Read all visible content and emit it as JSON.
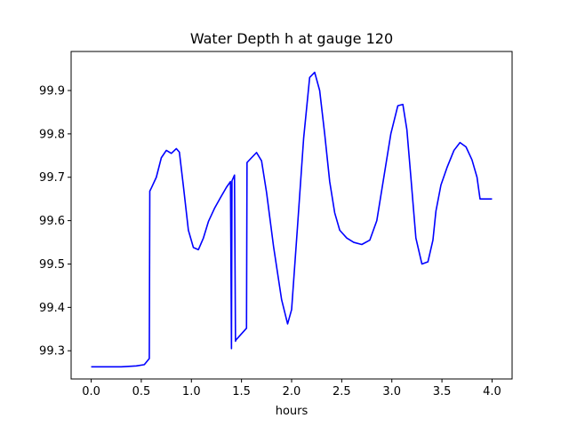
{
  "chart_data": {
    "type": "line",
    "title": "Water Depth h at gauge 120",
    "xlabel": "hours",
    "ylabel": "",
    "xlim": [
      -0.2,
      4.2
    ],
    "ylim": [
      99.235,
      99.99
    ],
    "xticks": [
      0.0,
      0.5,
      1.0,
      1.5,
      2.0,
      2.5,
      3.0,
      3.5,
      4.0
    ],
    "xtick_labels": [
      "0.0",
      "0.5",
      "1.0",
      "1.5",
      "2.0",
      "2.5",
      "3.0",
      "3.5",
      "4.0"
    ],
    "yticks": [
      99.3,
      99.4,
      99.5,
      99.6,
      99.7,
      99.8,
      99.9
    ],
    "ytick_labels": [
      "99.3",
      "99.4",
      "99.5",
      "99.6",
      "99.7",
      "99.8",
      "99.9"
    ],
    "grid": false,
    "series": [
      {
        "name": "h",
        "color": "#0000ff",
        "x": [
          0.0,
          0.3,
          0.45,
          0.53,
          0.58,
          0.585,
          0.6,
          0.65,
          0.7,
          0.75,
          0.8,
          0.85,
          0.88,
          0.92,
          0.97,
          1.02,
          1.07,
          1.12,
          1.17,
          1.23,
          1.29,
          1.35,
          1.39,
          1.4,
          1.405,
          1.43,
          1.44,
          1.445,
          1.55,
          1.555,
          1.6,
          1.65,
          1.7,
          1.75,
          1.82,
          1.9,
          1.96,
          2.0,
          2.06,
          2.12,
          2.18,
          2.23,
          2.28,
          2.33,
          2.38,
          2.43,
          2.48,
          2.55,
          2.62,
          2.7,
          2.78,
          2.85,
          2.92,
          2.99,
          3.06,
          3.11,
          3.15,
          3.19,
          3.24,
          3.3,
          3.36,
          3.41,
          3.44,
          3.49,
          3.55,
          3.62,
          3.68,
          3.74,
          3.8,
          3.85,
          3.88,
          3.92,
          3.96,
          4.0
        ],
        "y": [
          99.263,
          99.263,
          99.265,
          99.268,
          99.282,
          99.668,
          99.675,
          99.7,
          99.745,
          99.762,
          99.755,
          99.766,
          99.758,
          99.68,
          99.578,
          99.538,
          99.533,
          99.56,
          99.598,
          99.628,
          99.653,
          99.677,
          99.69,
          99.305,
          99.692,
          99.705,
          99.322,
          99.325,
          99.352,
          99.734,
          99.745,
          99.757,
          99.738,
          99.665,
          99.54,
          99.418,
          99.362,
          99.395,
          99.59,
          99.79,
          99.93,
          99.942,
          99.9,
          99.8,
          99.69,
          99.618,
          99.578,
          99.56,
          99.55,
          99.545,
          99.555,
          99.6,
          99.7,
          99.8,
          99.865,
          99.868,
          99.81,
          99.7,
          99.56,
          99.5,
          99.505,
          99.555,
          99.622,
          99.682,
          99.722,
          99.762,
          99.78,
          99.77,
          99.74,
          99.7,
          99.65,
          99.65,
          99.65,
          99.65
        ]
      }
    ]
  }
}
